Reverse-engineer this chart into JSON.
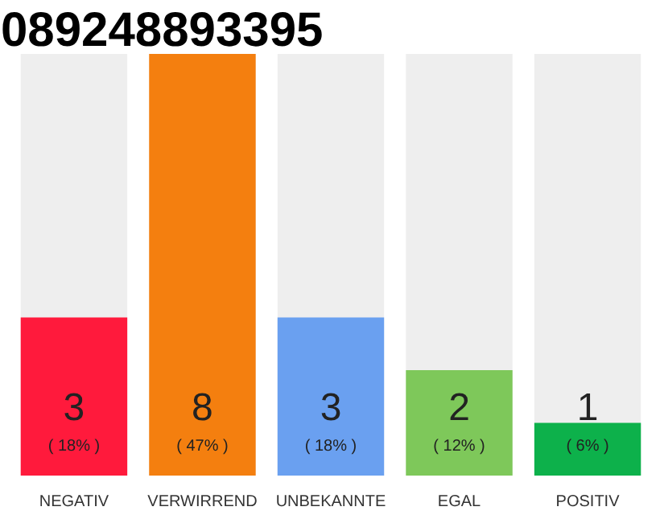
{
  "chart_data": {
    "type": "bar",
    "title": "089248893395",
    "categories": [
      "NEGATIV",
      "VERWIRREND",
      "UNBEKANNTE",
      "EGAL",
      "POSITIV"
    ],
    "values": [
      3,
      8,
      3,
      2,
      1
    ],
    "colors": [
      "#ff1a3c",
      "#f47f0f",
      "#6aa0f0",
      "#7ec85a",
      "#0db14b"
    ],
    "value_labels": [
      "3\n( 18% )",
      "8\n( 47% )",
      "3\n( 18% )",
      "2\n( 12% )",
      "1\n( 6% )"
    ],
    "grid": false
  }
}
